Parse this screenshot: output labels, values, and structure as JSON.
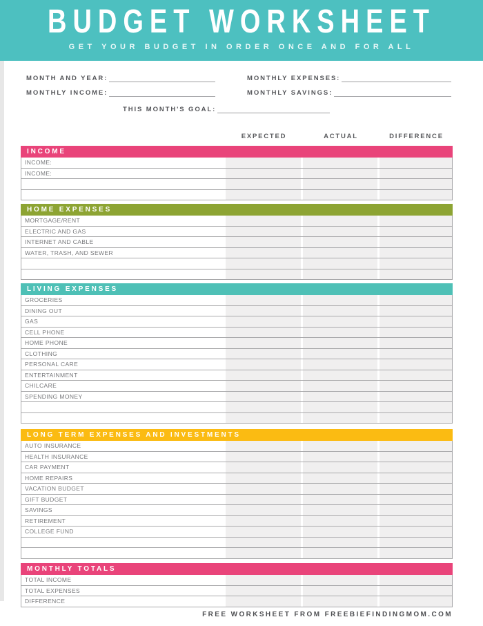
{
  "banner": {
    "title": "BUDGET WORKSHEET",
    "subtitle": "GET YOUR BUDGET IN ORDER ONCE AND FOR ALL",
    "background_color": "#4DC0C0"
  },
  "form": {
    "month_and_year_label": "MONTH AND YEAR:",
    "monthly_expenses_label": "MONTHLY EXPENSES:",
    "monthly_income_label": "MONTHLY INCOME:",
    "monthly_savings_label": "MONTHLY SAVINGS:",
    "goal_label": "THIS MONTH'S GOAL:",
    "month_and_year_value": "",
    "monthly_expenses_value": "",
    "monthly_income_value": "",
    "monthly_savings_value": "",
    "goal_value": ""
  },
  "table": {
    "column_headers": {
      "expected": "EXPECTED",
      "actual": "ACTUAL",
      "difference": "DIFFERENCE"
    },
    "sections": [
      {
        "id": "income",
        "title": "INCOME",
        "color": "#E9447A",
        "rows": [
          "INCOME:",
          "INCOME:",
          "",
          ""
        ]
      },
      {
        "id": "home",
        "title": "HOME EXPENSES",
        "color": "#8DA433",
        "rows": [
          "MORTGAGE/RENT",
          "ELECTRIC AND GAS",
          "INTERNET AND CABLE",
          "WATER, TRASH, AND SEWER",
          "",
          ""
        ]
      },
      {
        "id": "living",
        "title": "LIVING EXPENSES",
        "color": "#4EC0B6",
        "rows": [
          "GROCERIES",
          "DINING OUT",
          "GAS",
          "CELL PHONE",
          "HOME PHONE",
          "CLOTHING",
          "PERSONAL CARE",
          "ENTERTAINMENT",
          "CHILCARE",
          "SPENDING MONEY",
          "",
          ""
        ]
      },
      {
        "id": "longterm",
        "title": "LONG TERM EXPENSES AND INVESTMENTS",
        "color": "#FBBB12",
        "rows": [
          "AUTO INSURANCE",
          "HEALTH INSURANCE",
          "CAR PAYMENT",
          "HOME REPAIRS",
          "VACATION BUDGET",
          "GIFT BUDGET",
          "SAVINGS",
          "RETIREMENT",
          "COLLEGE FUND",
          "",
          ""
        ]
      },
      {
        "id": "totals",
        "title": "MONTHLY TOTALS",
        "color": "#E9447A",
        "rows": [
          "TOTAL INCOME",
          "TOTAL EXPENSES",
          "DIFFERENCE"
        ]
      }
    ]
  },
  "footer": {
    "text": "FREE WORKSHEET FROM FREEBIEFINDINGMOM.COM"
  },
  "colors": {
    "banner_teal": "#4DC0C0",
    "section_pink": "#E9447A",
    "section_olive": "#8DA433",
    "section_teal": "#4EC0B6",
    "section_yellow": "#FBBB12",
    "value_cell_gray": "#F0EFEF",
    "row_line_gray": "#A8A8AA"
  }
}
